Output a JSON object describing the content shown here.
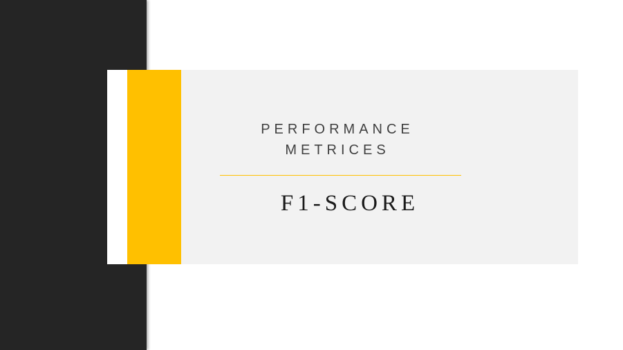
{
  "slide": {
    "heading_line1": "PERFORMANCE",
    "heading_line2": "METRICES",
    "subtitle": "F1-SCORE"
  },
  "colors": {
    "left_panel": "#252525",
    "accent": "#ffc000",
    "title_box": "#f2f2f2",
    "background": "#ffffff"
  }
}
